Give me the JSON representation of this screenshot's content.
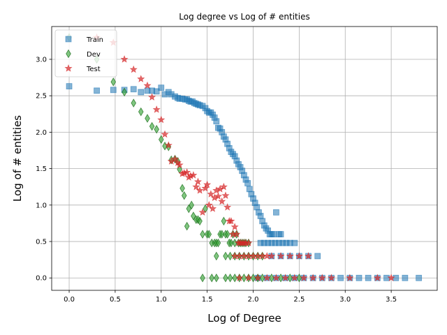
{
  "chart_data": {
    "type": "scatter",
    "title": "Log degree vs Log of # entities",
    "xlabel": "Log of Degree",
    "ylabel": "Log of # entities",
    "xlim": [
      -0.19,
      4.0
    ],
    "ylim": [
      -0.17,
      3.45
    ],
    "xticks": [
      0.0,
      0.5,
      1.0,
      1.5,
      2.0,
      2.5,
      3.0,
      3.5
    ],
    "xtick_labels": [
      "0.0",
      "0.5",
      "1.0",
      "1.5",
      "2.0",
      "2.5",
      "3.0",
      "3.5"
    ],
    "yticks": [
      0.0,
      0.5,
      1.0,
      1.5,
      2.0,
      2.5,
      3.0
    ],
    "ytick_labels": [
      "0.0",
      "0.5",
      "1.0",
      "1.5",
      "2.0",
      "2.5",
      "3.0"
    ],
    "grid": true,
    "legend_position": "top-left",
    "series": [
      {
        "name": "Train",
        "marker": "square",
        "color": "#1f77b4",
        "x": [
          0.0,
          0.3,
          0.48,
          0.6,
          0.7,
          0.78,
          0.85,
          0.9,
          0.95,
          1.0,
          1.04,
          1.08,
          1.11,
          1.15,
          1.18,
          1.2,
          1.23,
          1.26,
          1.28,
          1.3,
          1.32,
          1.34,
          1.36,
          1.38,
          1.4,
          1.42,
          1.45,
          1.48,
          1.5,
          1.52,
          1.54,
          1.56,
          1.58,
          1.6,
          1.62,
          1.64,
          1.66,
          1.68,
          1.7,
          1.72,
          1.74,
          1.76,
          1.78,
          1.8,
          1.82,
          1.84,
          1.86,
          1.88,
          1.9,
          1.92,
          1.94,
          1.96,
          1.98,
          2.0,
          2.02,
          2.04,
          2.06,
          2.08,
          2.1,
          2.12,
          2.14,
          2.16,
          2.18,
          2.2,
          2.22,
          2.25,
          2.28,
          2.3,
          2.08,
          2.12,
          2.16,
          2.2,
          2.24,
          2.28,
          2.32,
          2.36,
          2.4,
          2.45,
          2.2,
          2.3,
          2.4,
          2.5,
          2.6,
          2.7,
          2.05,
          2.15,
          2.25,
          2.35,
          2.45,
          2.55,
          2.65,
          2.75,
          2.85,
          2.95,
          3.05,
          3.15,
          3.25,
          3.35,
          3.45,
          3.55,
          3.65,
          3.8
        ],
        "y": [
          2.63,
          2.57,
          2.58,
          2.58,
          2.59,
          2.55,
          2.57,
          2.57,
          2.56,
          2.61,
          2.52,
          2.55,
          2.52,
          2.49,
          2.47,
          2.46,
          2.46,
          2.45,
          2.45,
          2.43,
          2.42,
          2.42,
          2.4,
          2.39,
          2.38,
          2.37,
          2.36,
          2.33,
          2.29,
          2.27,
          2.27,
          2.24,
          2.2,
          2.15,
          2.06,
          2.05,
          2.0,
          1.94,
          1.9,
          1.84,
          1.78,
          1.73,
          1.7,
          1.67,
          1.61,
          1.56,
          1.52,
          1.47,
          1.41,
          1.35,
          1.3,
          1.22,
          1.15,
          1.09,
          1.03,
          0.97,
          0.9,
          0.85,
          0.78,
          0.72,
          0.68,
          0.65,
          0.6,
          0.6,
          0.6,
          0.9,
          0.6,
          0.6,
          0.48,
          0.48,
          0.48,
          0.48,
          0.48,
          0.48,
          0.48,
          0.48,
          0.48,
          0.48,
          0.3,
          0.3,
          0.3,
          0.3,
          0.3,
          0.3,
          0.0,
          0.0,
          0.0,
          0.0,
          0.0,
          0.0,
          0.0,
          0.0,
          0.0,
          0.0,
          0.0,
          0.0,
          0.0,
          0.0,
          0.0,
          0.0,
          0.0,
          0.0
        ]
      },
      {
        "name": "Dev",
        "marker": "thin_diamond",
        "color": "#2ca02c",
        "x": [
          0.0,
          0.3,
          0.48,
          0.6,
          0.7,
          0.78,
          0.85,
          0.9,
          0.95,
          1.0,
          1.04,
          1.08,
          1.11,
          1.15,
          1.18,
          1.2,
          1.23,
          1.25,
          1.28,
          1.3,
          1.33,
          1.35,
          1.38,
          1.4,
          1.42,
          1.45,
          1.48,
          1.5,
          1.52,
          1.55,
          1.58,
          1.6,
          1.62,
          1.64,
          1.66,
          1.68,
          1.7,
          1.72,
          1.74,
          1.76,
          1.78,
          1.8,
          1.82,
          1.84,
          1.86,
          1.88,
          1.9,
          1.92,
          1.95,
          1.6,
          1.7,
          1.75,
          1.8,
          1.85,
          1.9,
          1.95,
          2.0,
          2.05,
          2.1,
          1.45,
          1.55,
          1.6,
          1.7,
          1.75,
          1.8,
          1.85,
          1.9,
          1.95,
          2.0,
          2.05,
          2.1,
          2.2,
          2.3,
          2.4,
          2.5
        ],
        "y": [
          3.3,
          3.0,
          2.69,
          2.55,
          2.4,
          2.28,
          2.19,
          2.08,
          2.04,
          1.9,
          1.81,
          1.8,
          1.62,
          1.63,
          1.6,
          1.49,
          1.23,
          1.13,
          0.71,
          0.95,
          1.0,
          0.85,
          0.8,
          0.8,
          0.78,
          0.6,
          0.95,
          0.6,
          0.6,
          0.48,
          0.48,
          0.48,
          0.48,
          0.6,
          0.6,
          0.78,
          0.6,
          0.6,
          0.48,
          0.48,
          0.6,
          0.48,
          0.6,
          0.48,
          0.48,
          0.48,
          0.48,
          0.48,
          0.48,
          0.3,
          0.3,
          0.3,
          0.3,
          0.3,
          0.3,
          0.3,
          0.3,
          0.3,
          0.3,
          0.0,
          0.0,
          0.0,
          0.0,
          0.0,
          0.0,
          0.0,
          0.0,
          0.0,
          0.0,
          0.0,
          0.0,
          0.0,
          0.0,
          0.0,
          0.0
        ]
      },
      {
        "name": "Test",
        "marker": "star",
        "color": "#d62728",
        "x": [
          0.3,
          0.48,
          0.6,
          0.7,
          0.78,
          0.85,
          0.9,
          0.95,
          1.0,
          1.04,
          1.08,
          1.11,
          1.15,
          1.18,
          1.2,
          1.23,
          1.25,
          1.28,
          1.3,
          1.32,
          1.35,
          1.38,
          1.4,
          1.42,
          1.45,
          1.48,
          1.5,
          1.52,
          1.54,
          1.56,
          1.58,
          1.6,
          1.62,
          1.64,
          1.66,
          1.68,
          1.7,
          1.72,
          1.74,
          1.76,
          1.78,
          1.8,
          1.82,
          1.84,
          1.86,
          1.88,
          1.9,
          1.92,
          1.95,
          1.8,
          1.85,
          1.9,
          1.95,
          2.0,
          2.05,
          2.1,
          2.15,
          2.2,
          2.3,
          2.4,
          2.5,
          2.6,
          1.85,
          1.95,
          2.05,
          2.15,
          2.25,
          2.35,
          2.45,
          2.55,
          2.65,
          2.75,
          2.85,
          3.05,
          3.35,
          3.5
        ],
        "y": [
          3.3,
          3.23,
          3.0,
          2.86,
          2.73,
          2.64,
          2.48,
          2.31,
          2.17,
          1.97,
          1.82,
          1.6,
          1.63,
          1.58,
          1.55,
          1.43,
          1.44,
          1.45,
          1.38,
          1.4,
          1.41,
          1.25,
          1.32,
          1.2,
          0.9,
          1.23,
          1.28,
          1.0,
          1.15,
          0.95,
          1.1,
          1.2,
          1.12,
          1.22,
          1.05,
          1.25,
          1.13,
          0.97,
          0.78,
          0.78,
          0.6,
          0.7,
          0.6,
          0.48,
          0.48,
          0.48,
          0.48,
          0.48,
          0.48,
          0.3,
          0.3,
          0.3,
          0.3,
          0.3,
          0.3,
          0.3,
          0.3,
          0.3,
          0.3,
          0.3,
          0.3,
          0.3,
          0.0,
          0.0,
          0.0,
          0.0,
          0.0,
          0.0,
          0.0,
          0.0,
          0.0,
          0.0,
          0.0,
          0.0,
          0.0,
          0.0
        ]
      }
    ]
  }
}
